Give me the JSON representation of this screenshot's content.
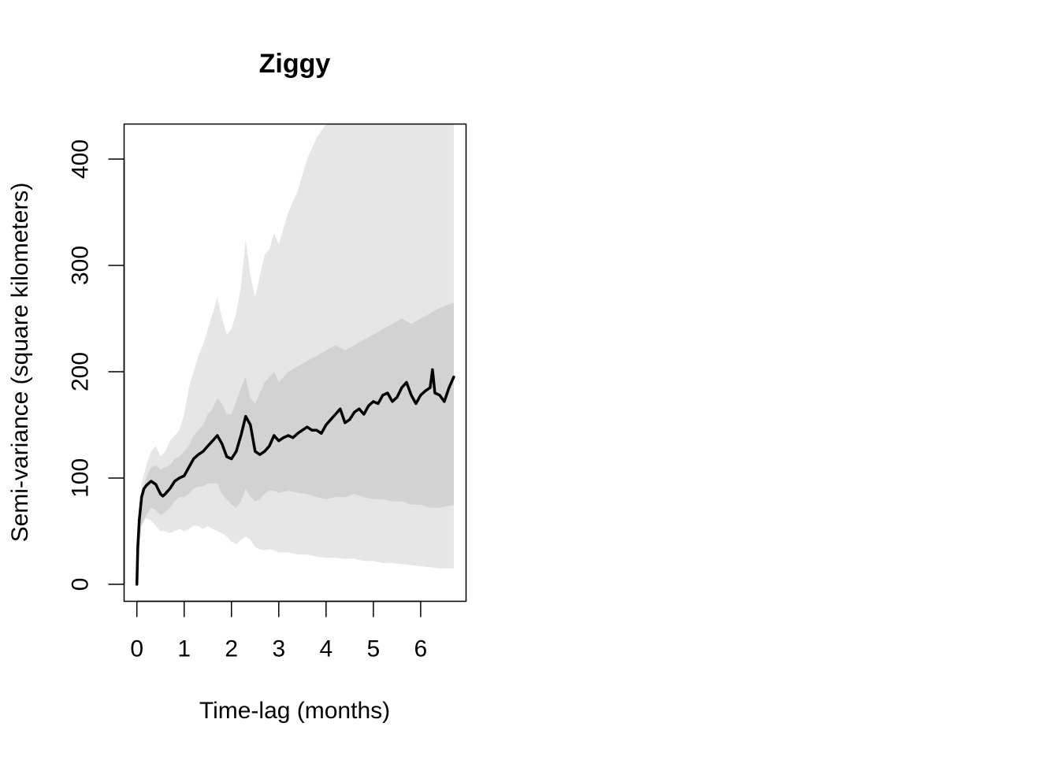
{
  "chart_data": {
    "type": "line",
    "title": "Ziggy",
    "xlabel": "Time-lag (months)",
    "ylabel": "Semi-variance (square kilometers)",
    "xlim": [
      -0.27,
      6.96
    ],
    "ylim": [
      -16,
      433
    ],
    "x_ticks": [
      0,
      1,
      2,
      3,
      4,
      5,
      6
    ],
    "x_tick_labels": [
      "0",
      "1",
      "2",
      "3",
      "4",
      "5",
      "6"
    ],
    "y_ticks": [
      0,
      100,
      200,
      300,
      400
    ],
    "y_tick_labels": [
      "0",
      "100",
      "200",
      "300",
      "400"
    ],
    "grid": false,
    "legend": "none",
    "colors": {
      "line": "#000000",
      "outer_band": "#e6e6e6",
      "inner_band": "#d2d2d2"
    },
    "series": [
      {
        "role": "semi-variance",
        "x": [
          0,
          0.02,
          0.05,
          0.1,
          0.15,
          0.2,
          0.3,
          0.4,
          0.5,
          0.55,
          0.6,
          0.7,
          0.8,
          0.9,
          1.0,
          1.1,
          1.2,
          1.3,
          1.4,
          1.5,
          1.6,
          1.7,
          1.8,
          1.9,
          2.0,
          2.1,
          2.2,
          2.3,
          2.4,
          2.5,
          2.6,
          2.7,
          2.8,
          2.9,
          3.0,
          3.1,
          3.2,
          3.3,
          3.4,
          3.5,
          3.6,
          3.7,
          3.8,
          3.9,
          4.0,
          4.1,
          4.2,
          4.3,
          4.4,
          4.5,
          4.6,
          4.7,
          4.8,
          4.9,
          5.0,
          5.1,
          5.2,
          5.3,
          5.4,
          5.5,
          5.6,
          5.7,
          5.8,
          5.9,
          6.0,
          6.1,
          6.2,
          6.25,
          6.3,
          6.4,
          6.5,
          6.6,
          6.7
        ],
        "y": [
          0,
          35,
          60,
          82,
          90,
          93,
          97,
          94,
          85,
          83,
          85,
          90,
          97,
          100,
          102,
          110,
          118,
          122,
          125,
          130,
          135,
          140,
          132,
          120,
          118,
          125,
          140,
          158,
          150,
          125,
          122,
          125,
          130,
          140,
          135,
          138,
          140,
          138,
          142,
          145,
          148,
          145,
          145,
          142,
          150,
          155,
          160,
          165,
          152,
          155,
          162,
          165,
          160,
          168,
          172,
          170,
          178,
          180,
          172,
          176,
          185,
          190,
          178,
          170,
          178,
          182,
          185,
          202,
          180,
          178,
          172,
          185,
          195
        ]
      }
    ],
    "bands": [
      {
        "role": "outer-ci",
        "x": [
          0,
          0.05,
          0.1,
          0.2,
          0.3,
          0.4,
          0.5,
          0.6,
          0.7,
          0.8,
          0.9,
          1.0,
          1.1,
          1.2,
          1.3,
          1.4,
          1.5,
          1.6,
          1.7,
          1.8,
          1.9,
          2.0,
          2.1,
          2.2,
          2.3,
          2.4,
          2.5,
          2.6,
          2.7,
          2.8,
          2.9,
          3.0,
          3.2,
          3.4,
          3.6,
          3.8,
          4.0,
          4.2,
          4.4,
          4.6,
          4.8,
          5.0,
          5.2,
          5.4,
          5.6,
          5.8,
          6.0,
          6.2,
          6.4,
          6.7
        ],
        "lower": [
          0,
          40,
          60,
          62,
          60,
          55,
          50,
          50,
          48,
          50,
          52,
          50,
          52,
          55,
          55,
          52,
          55,
          52,
          50,
          48,
          45,
          40,
          38,
          42,
          45,
          42,
          35,
          33,
          32,
          33,
          32,
          30,
          30,
          28,
          28,
          26,
          25,
          25,
          24,
          24,
          22,
          22,
          20,
          20,
          19,
          18,
          17,
          16,
          15,
          15
        ],
        "upper": [
          0,
          60,
          95,
          112,
          125,
          130,
          120,
          125,
          135,
          140,
          145,
          160,
          185,
          200,
          215,
          225,
          240,
          255,
          270,
          250,
          235,
          240,
          255,
          280,
          325,
          290,
          270,
          290,
          310,
          315,
          330,
          320,
          350,
          370,
          400,
          420,
          433,
          433,
          433,
          433,
          433,
          433,
          433,
          433,
          433,
          433,
          433,
          433,
          433,
          433
        ]
      },
      {
        "role": "inner-ci",
        "x": [
          0,
          0.05,
          0.1,
          0.2,
          0.3,
          0.4,
          0.5,
          0.6,
          0.7,
          0.8,
          0.9,
          1.0,
          1.1,
          1.2,
          1.3,
          1.4,
          1.5,
          1.6,
          1.7,
          1.8,
          1.9,
          2.0,
          2.1,
          2.2,
          2.3,
          2.4,
          2.5,
          2.6,
          2.7,
          2.8,
          2.9,
          3.0,
          3.2,
          3.4,
          3.6,
          3.8,
          4.0,
          4.2,
          4.4,
          4.6,
          4.8,
          5.0,
          5.2,
          5.4,
          5.6,
          5.8,
          6.0,
          6.2,
          6.4,
          6.7
        ],
        "lower": [
          0,
          35,
          55,
          65,
          72,
          70,
          65,
          68,
          72,
          78,
          82,
          82,
          85,
          90,
          92,
          92,
          95,
          95,
          95,
          85,
          80,
          75,
          72,
          78,
          90,
          82,
          78,
          80,
          85,
          88,
          88,
          86,
          88,
          86,
          85,
          82,
          80,
          82,
          82,
          85,
          82,
          80,
          80,
          78,
          78,
          75,
          75,
          72,
          72,
          75
        ],
        "upper": [
          0,
          55,
          85,
          100,
          110,
          112,
          108,
          110,
          112,
          118,
          120,
          125,
          130,
          140,
          145,
          150,
          160,
          165,
          175,
          170,
          160,
          160,
          172,
          185,
          195,
          175,
          170,
          180,
          190,
          195,
          200,
          190,
          200,
          205,
          210,
          215,
          220,
          225,
          220,
          225,
          230,
          235,
          240,
          245,
          250,
          245,
          250,
          255,
          260,
          265
        ]
      }
    ]
  }
}
